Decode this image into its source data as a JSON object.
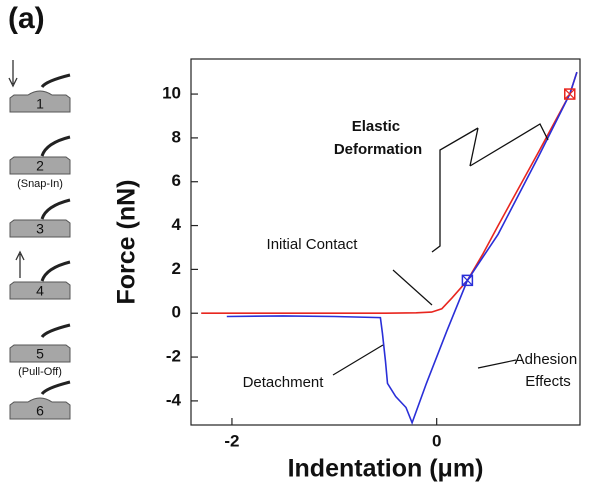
{
  "panel_label": "(a)",
  "schematic": {
    "steps": [
      {
        "label": "1"
      },
      {
        "label": "2",
        "note": "(Snap-In)"
      },
      {
        "label": "3"
      },
      {
        "label": "4"
      },
      {
        "label": "5",
        "note": "(Pull-Off)"
      },
      {
        "label": "6"
      }
    ]
  },
  "chart_data": {
    "type": "line",
    "x_label": "Indentation (μm)",
    "y_label": "Force (nN)",
    "xlim": [
      -2.4,
      1.4
    ],
    "ylim": [
      -5.1,
      11.6
    ],
    "xticks": [
      -2,
      0
    ],
    "yticks": [
      -4,
      -2,
      0,
      2,
      4,
      6,
      8,
      10
    ],
    "series": [
      {
        "color": "#e8261f",
        "x": [
          -2.3,
          -1.5,
          -1.0,
          -0.5,
          -0.2,
          -0.05,
          0.05,
          0.15,
          0.3,
          0.45,
          0.6,
          0.8,
          1.0,
          1.15,
          1.3,
          1.37
        ],
        "values": [
          0.0,
          0.0,
          0.0,
          0.0,
          0.02,
          0.05,
          0.2,
          0.7,
          1.5,
          2.7,
          4.0,
          5.7,
          7.4,
          8.7,
          10.0,
          11.0
        ]
      },
      {
        "color": "#2a2fd8",
        "x": [
          1.37,
          1.3,
          1.0,
          0.6,
          0.3,
          0.1,
          -0.1,
          -0.24,
          -0.3,
          -0.4,
          -0.48,
          -0.5,
          -0.53,
          -0.55,
          -1.0,
          -1.5,
          -2.05
        ],
        "values": [
          11.0,
          10.0,
          7.2,
          3.6,
          1.5,
          -0.8,
          -3.2,
          -5.0,
          -4.3,
          -3.8,
          -3.2,
          -2.2,
          -0.9,
          -0.2,
          -0.15,
          -0.12,
          -0.15
        ]
      }
    ],
    "markers": [
      {
        "x": 0.3,
        "y": 1.5,
        "color": "#2a2fd8"
      },
      {
        "x": 1.3,
        "y": 10.0,
        "color": "#e8261f"
      }
    ],
    "annotations": [
      {
        "text": [
          "Elastic",
          "Deformation"
        ]
      },
      {
        "text": [
          "Initial Contact"
        ]
      },
      {
        "text": [
          "Detachment"
        ]
      },
      {
        "text": [
          "Adhesion",
          "Effects"
        ]
      }
    ]
  }
}
